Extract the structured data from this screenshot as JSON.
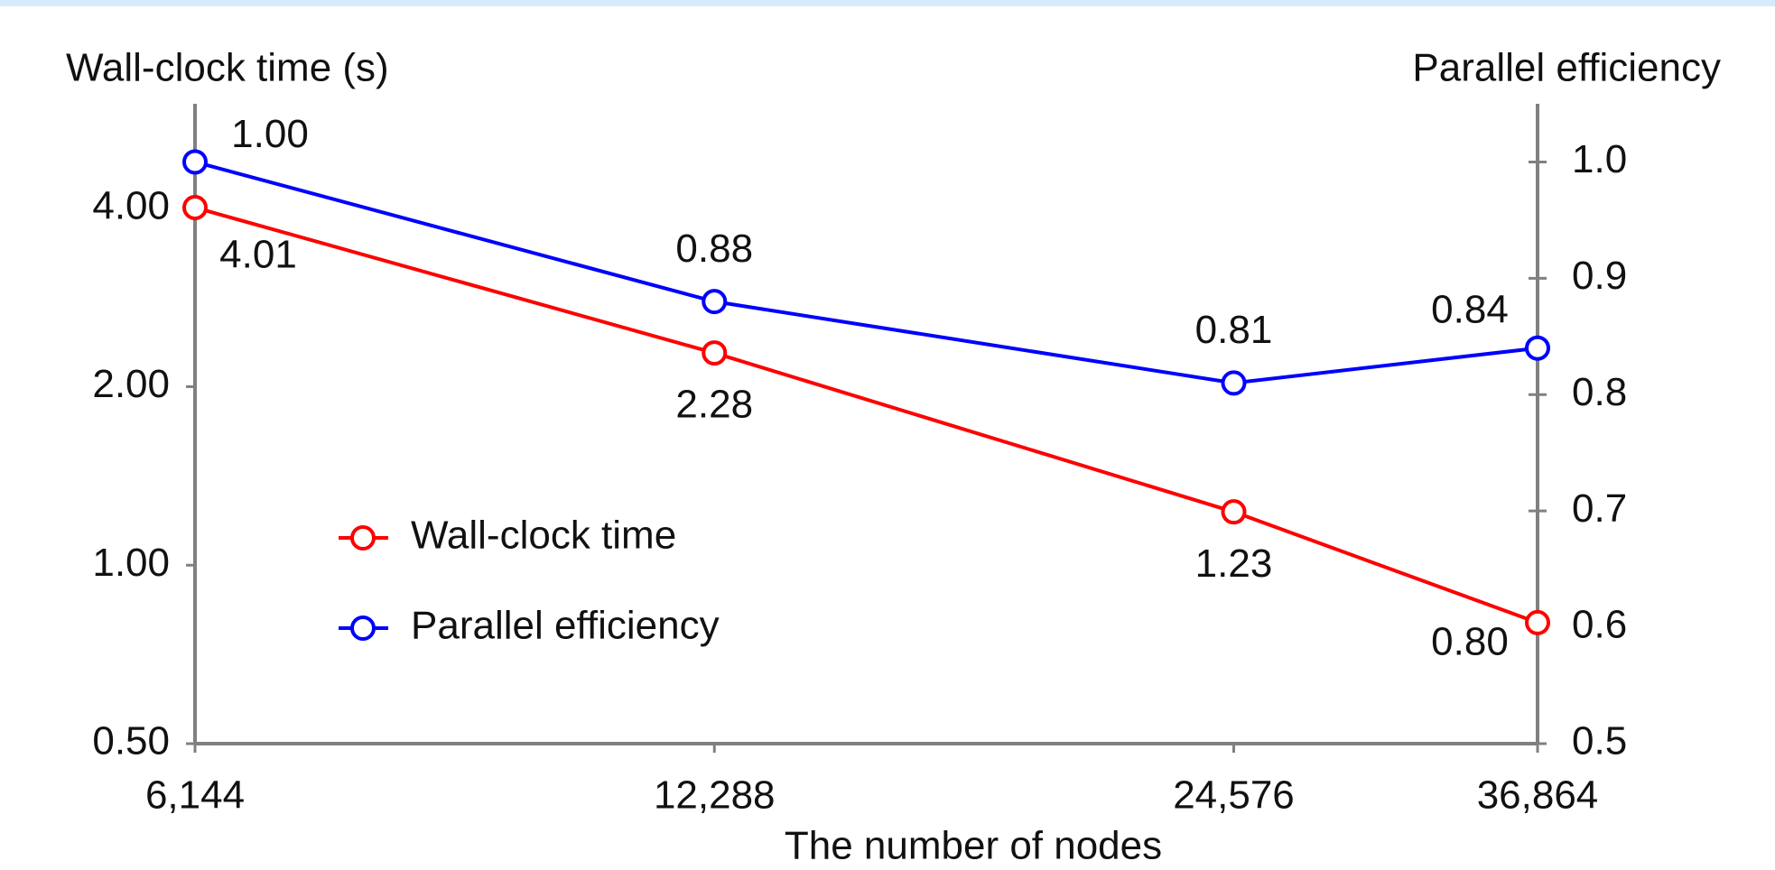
{
  "chart_data": {
    "type": "line",
    "x_label": "The number of nodes",
    "y_label": "Wall-clock time (s)",
    "y2_label": "Parallel efficiency",
    "x": [
      6144,
      12288,
      24576,
      36864
    ],
    "xscale": "log",
    "xlim": [
      6144,
      36864
    ],
    "xticks": [
      {
        "value": 6144,
        "label": "6,144"
      },
      {
        "value": 12288,
        "label": "12,288"
      },
      {
        "value": 24576,
        "label": "24,576"
      },
      {
        "value": 36864,
        "label": "36,864"
      }
    ],
    "yscale": "log",
    "ylim": [
      0.5,
      6
    ],
    "yticks": [
      {
        "value": 0.5,
        "label": "0.50"
      },
      {
        "value": 1,
        "label": "1.00"
      },
      {
        "value": 2,
        "label": "2.00"
      },
      {
        "value": 4,
        "label": "4.00"
      }
    ],
    "y2lim": [
      0.5,
      1.05
    ],
    "y2ticks": [
      0.5,
      0.6,
      0.7,
      0.8,
      0.9,
      {
        "value": 1,
        "label": "1.0"
      }
    ],
    "grid": false,
    "legend": "lower left",
    "series": [
      {
        "name": "Wall-clock time",
        "color": "#ff0000",
        "values": [
          4.01,
          2.28,
          1.23,
          0.8
        ],
        "value_labels": [
          "4.01",
          "2.28",
          "1.23",
          "0.80"
        ]
      },
      {
        "name": "Parallel efficiency",
        "color": "#0000ff",
        "axis": "y2",
        "values": [
          1,
          0.88,
          0.81,
          0.84
        ],
        "value_labels": [
          "1.00",
          "0.88",
          "0.81",
          "0.84"
        ]
      }
    ]
  }
}
